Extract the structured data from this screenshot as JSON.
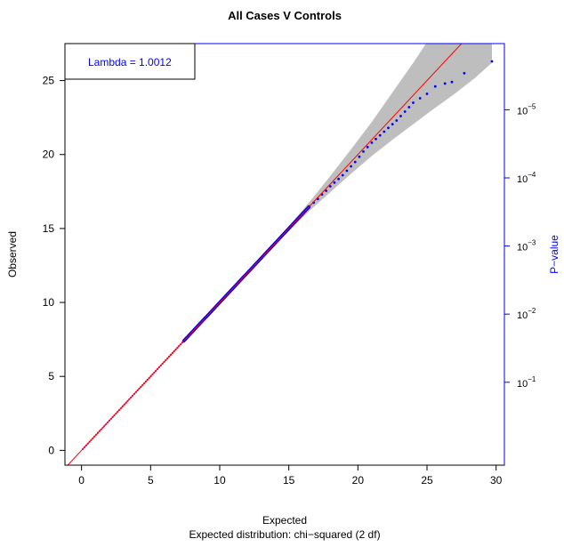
{
  "chart_data": {
    "type": "scatter",
    "title": "All Cases V Controls",
    "xlabel": "Expected",
    "subtitle": "Expected distribution: chi−squared (2 df)",
    "ylabel": "Observed",
    "y2label": "P−value",
    "legend": {
      "text": "Lambda =  1.0012",
      "placement": "top-left"
    },
    "xlim": [
      -1.2,
      30.6
    ],
    "ylim": [
      -1.0,
      27.5
    ],
    "x_ticks": [
      0,
      5,
      10,
      15,
      20,
      25,
      30
    ],
    "x_tick_labels": [
      "0",
      "5",
      "10",
      "15",
      "20",
      "25",
      "30"
    ],
    "y_ticks": [
      0,
      5,
      10,
      15,
      20,
      25
    ],
    "y_tick_labels": [
      "0",
      "5",
      "10",
      "15",
      "20",
      "25"
    ],
    "y2_ticks": [
      {
        "value": 4.605,
        "base": "10",
        "exp": "−1"
      },
      {
        "value": 9.21,
        "base": "10",
        "exp": "−2"
      },
      {
        "value": 13.816,
        "base": "10",
        "exp": "−3"
      },
      {
        "value": 18.421,
        "base": "10",
        "exp": "−4"
      },
      {
        "value": 23.026,
        "base": "10",
        "exp": "−5"
      }
    ],
    "reference_line": {
      "slope": 1,
      "intercept": 0
    },
    "confidence_band": {
      "x": [
        7.4,
        10,
        13,
        15,
        16.5,
        18,
        19.5,
        21,
        22.5,
        24,
        25.5,
        27,
        28.5,
        29.7
      ],
      "lower": [
        7.35,
        9.95,
        12.92,
        14.85,
        16.2,
        17.45,
        18.7,
        19.9,
        21.0,
        22.05,
        23.1,
        24.1,
        25.2,
        26.2
      ],
      "upper": [
        7.45,
        10.05,
        13.08,
        15.15,
        16.8,
        18.55,
        20.35,
        22.2,
        24.2,
        26.2,
        28.3,
        30.5,
        32.6,
        34.5
      ]
    },
    "points": {
      "color": "#0000ff",
      "dense_segment": {
        "x_start": 7.4,
        "x_end": 16.5,
        "slope": 1.0
      },
      "tail": [
        [
          16.8,
          16.75
        ],
        [
          17.1,
          17.0
        ],
        [
          17.4,
          17.3
        ],
        [
          17.7,
          17.55
        ],
        [
          18.0,
          17.85
        ],
        [
          18.3,
          18.1
        ],
        [
          18.6,
          18.35
        ],
        [
          18.9,
          18.6
        ],
        [
          19.2,
          18.9
        ],
        [
          19.5,
          19.2
        ],
        [
          19.8,
          19.5
        ],
        [
          20.1,
          19.85
        ],
        [
          20.4,
          20.2
        ],
        [
          20.7,
          20.5
        ],
        [
          21.0,
          20.8
        ],
        [
          21.3,
          21.05
        ],
        [
          21.6,
          21.3
        ],
        [
          21.9,
          21.55
        ],
        [
          22.2,
          21.8
        ],
        [
          22.5,
          22.05
        ],
        [
          22.8,
          22.3
        ],
        [
          23.1,
          22.6
        ],
        [
          23.4,
          22.9
        ],
        [
          23.7,
          23.2
        ],
        [
          24.0,
          23.5
        ],
        [
          24.5,
          23.8
        ],
        [
          25.0,
          24.1
        ],
        [
          25.6,
          24.6
        ],
        [
          26.3,
          24.8
        ],
        [
          26.8,
          24.9
        ],
        [
          27.7,
          25.5
        ],
        [
          29.7,
          26.3
        ]
      ]
    },
    "lower_points": {
      "color": "#cc1177",
      "x_start": 0.1,
      "x_end": 7.4
    }
  }
}
